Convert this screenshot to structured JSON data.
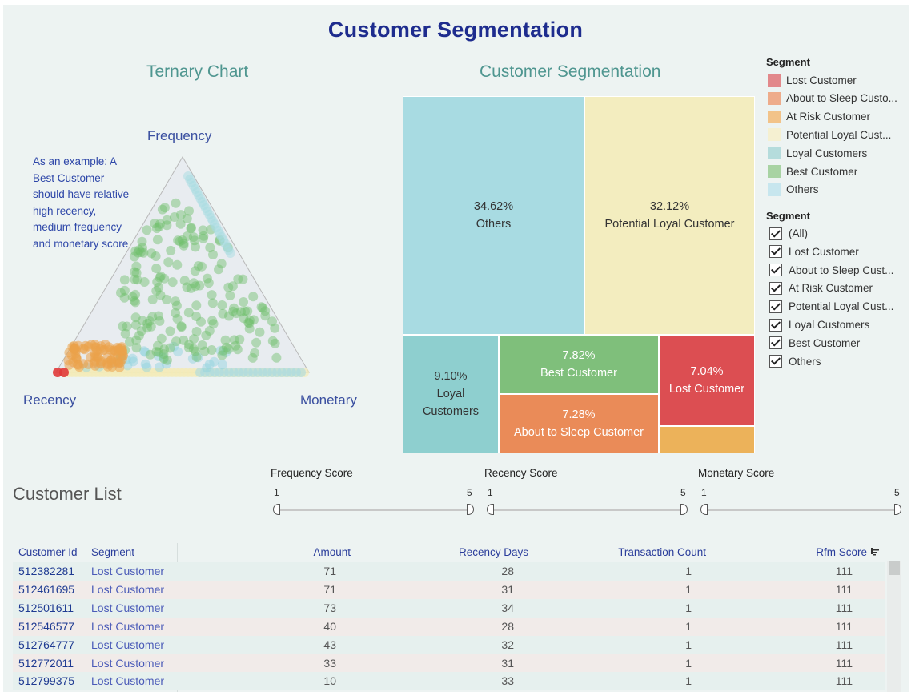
{
  "dashboard": {
    "title": "Customer Segmentation"
  },
  "ternary": {
    "title": "Ternary Chart",
    "labels": {
      "top": "Frequency",
      "left": "Recency",
      "right": "Monetary"
    },
    "note": "As an example: A Best Customer should have relative high recency, medium frequency and monetary score"
  },
  "treemap": {
    "title": "Customer Segmentation",
    "blocks": [
      {
        "pct": "34.62%",
        "name": "Others",
        "color": "#a8dbe2"
      },
      {
        "pct": "32.12%",
        "name": "Potential Loyal Customer",
        "color": "#f3edbf"
      },
      {
        "pct": "9.10%",
        "name": "Loyal Customers",
        "color": "#8ecfcf"
      },
      {
        "pct": "7.82%",
        "name": "Best Customer",
        "color": "#7fbf7b"
      },
      {
        "pct": "7.28%",
        "name": "About to Sleep Customer",
        "color": "#ea8b58"
      },
      {
        "pct": "7.04%",
        "name": "Lost Customer",
        "color": "#dc4e52"
      },
      {
        "pct": "",
        "name": "",
        "color": "#ecb25a"
      }
    ]
  },
  "legend": {
    "title": "Segment",
    "items": [
      {
        "label": "Lost Customer",
        "color": "#e2888b"
      },
      {
        "label": "About to Sleep Custo...",
        "color": "#eeac8b"
      },
      {
        "label": "At Risk Customer",
        "color": "#f2c389"
      },
      {
        "label": "Potential Loyal Cust...",
        "color": "#f5f0d1"
      },
      {
        "label": "Loyal Customers",
        "color": "#b5dcdc"
      },
      {
        "label": "Best Customer",
        "color": "#a8d3a3"
      },
      {
        "label": "Others",
        "color": "#c7e6ee"
      }
    ]
  },
  "filter": {
    "title": "Segment",
    "items": [
      {
        "label": "(All)",
        "checked": true
      },
      {
        "label": "Lost Customer",
        "checked": true
      },
      {
        "label": "About to Sleep Cust...",
        "checked": true
      },
      {
        "label": "At Risk Customer",
        "checked": true
      },
      {
        "label": "Potential Loyal Cust...",
        "checked": true
      },
      {
        "label": "Loyal Customers",
        "checked": true
      },
      {
        "label": "Best Customer",
        "checked": true
      },
      {
        "label": "Others",
        "checked": true
      }
    ]
  },
  "sliders": [
    {
      "title": "Frequency Score",
      "min": "1",
      "max": "5"
    },
    {
      "title": "Recency Score",
      "min": "1",
      "max": "5"
    },
    {
      "title": "Monetary Score",
      "min": "1",
      "max": "5"
    }
  ],
  "customer_list": {
    "title": "Customer List",
    "columns": [
      "Customer Id",
      "Segment",
      "Amount",
      "Recency Days",
      "Transaction Count",
      "Rfm Score"
    ],
    "rows": [
      [
        "512382281",
        "Lost Customer",
        "71",
        "28",
        "1",
        "111"
      ],
      [
        "512461695",
        "Lost Customer",
        "71",
        "31",
        "1",
        "111"
      ],
      [
        "512501611",
        "Lost Customer",
        "73",
        "34",
        "1",
        "111"
      ],
      [
        "512546577",
        "Lost Customer",
        "40",
        "28",
        "1",
        "111"
      ],
      [
        "512764777",
        "Lost Customer",
        "43",
        "32",
        "1",
        "111"
      ],
      [
        "512772011",
        "Lost Customer",
        "33",
        "31",
        "1",
        "111"
      ],
      [
        "512799375",
        "Lost Customer",
        "10",
        "33",
        "1",
        "111"
      ]
    ]
  },
  "colors": {
    "title": "#1e2c8e",
    "subtitle": "#4f9690",
    "background": "#edf3f2"
  }
}
